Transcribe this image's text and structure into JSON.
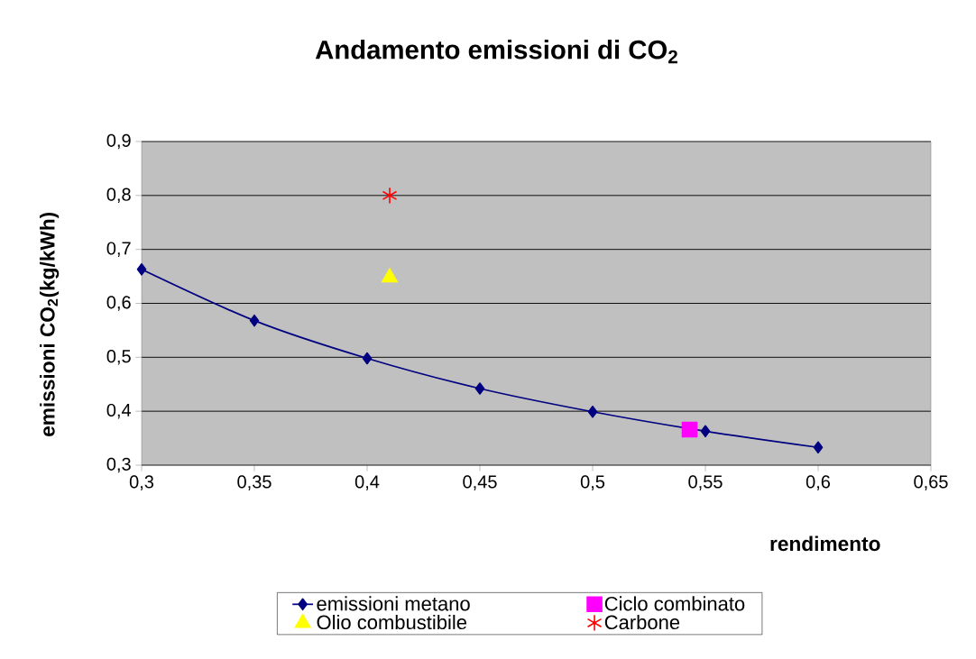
{
  "chart_data": {
    "type": "line",
    "title": "Andamento emissioni di CO$_{2}$",
    "xlabel": "rendimento",
    "ylabel": "emissioni CO$_{2}$(kg/kWh)",
    "series": [
      {
        "name": "emissioni metano",
        "color": "#000080",
        "marker": "diamond",
        "x": [
          0.3,
          0.35,
          0.4,
          0.45,
          0.5,
          0.55,
          0.6
        ],
        "values": [
          0.663,
          0.568,
          0.498,
          0.442,
          0.399,
          0.363,
          0.333
        ]
      },
      {
        "name": "Ciclo combinato",
        "type": "scatter",
        "color": "#ff00ff",
        "marker": "square",
        "x": [
          0.543
        ],
        "values": [
          0.366
        ]
      },
      {
        "name": "Olio combustibile",
        "type": "scatter",
        "color": "#ffff00",
        "marker": "triangle",
        "x": [
          0.41
        ],
        "values": [
          0.648
        ]
      },
      {
        "name": "Carbone",
        "type": "scatter",
        "color": "#ff0000",
        "marker": "cross",
        "x": [
          0.41
        ],
        "values": [
          0.8
        ]
      }
    ],
    "xlim": [
      0.3,
      0.65
    ],
    "xticks": [
      {
        "value": 0.3,
        "label": "0,3"
      },
      {
        "value": 0.35,
        "label": "0,35"
      },
      {
        "value": 0.4,
        "label": "0,4"
      },
      {
        "value": 0.45,
        "label": "0,45"
      },
      {
        "value": 0.5,
        "label": "0,5"
      },
      {
        "value": 0.55,
        "label": "0,55"
      },
      {
        "value": 0.6,
        "label": "0,6"
      },
      {
        "value": 0.65,
        "label": "0,65"
      }
    ],
    "ylim": [
      0.3,
      0.9
    ],
    "yticks": [
      {
        "value": 0.3,
        "label": "0,3"
      },
      {
        "value": 0.4,
        "label": "0,4"
      },
      {
        "value": 0.5,
        "label": "0,5"
      },
      {
        "value": 0.6,
        "label": "0,6"
      },
      {
        "value": 0.7,
        "label": "0,7"
      },
      {
        "value": 0.8,
        "label": "0,8"
      },
      {
        "value": 0.9,
        "label": "0,9"
      }
    ],
    "grid": "y",
    "legend": "bottom"
  }
}
